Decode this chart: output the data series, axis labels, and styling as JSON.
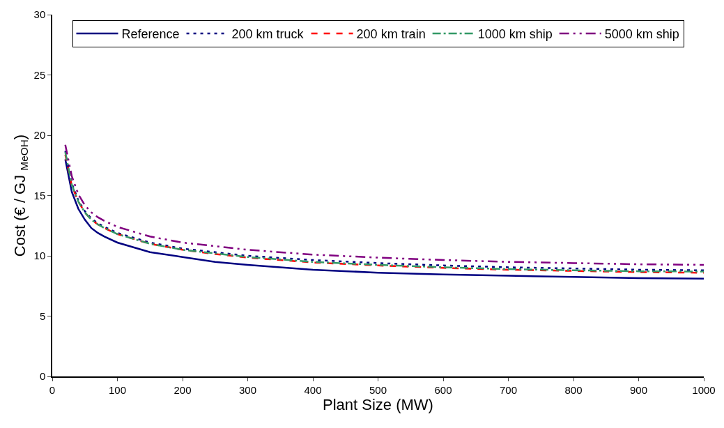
{
  "chart_data": {
    "type": "line",
    "xlabel": "Plant Size (MW)",
    "ylabel": "Cost (€ / GJ $_{MeOH}$)",
    "x": [
      20,
      30,
      40,
      50,
      60,
      70,
      80,
      100,
      150,
      200,
      250,
      300,
      400,
      500,
      600,
      700,
      800,
      900,
      1000
    ],
    "xlim": [
      0,
      1000
    ],
    "xticks": [
      0,
      100,
      200,
      300,
      400,
      500,
      600,
      700,
      800,
      900,
      1000
    ],
    "ylim": [
      0,
      30
    ],
    "yticks": [
      0,
      5,
      10,
      15,
      20,
      25,
      30
    ],
    "legend": "top",
    "marker": "none",
    "series": [
      {
        "name": "Reference",
        "color": "#000080",
        "line_style": "solid",
        "values": [
          18.0,
          15.3,
          13.9,
          13.0,
          12.3,
          11.9,
          11.6,
          11.1,
          10.3,
          9.9,
          9.5,
          9.25,
          8.85,
          8.6,
          8.45,
          8.35,
          8.25,
          8.15,
          8.1
        ]
      },
      {
        "name": "200 km truck",
        "color": "#000080",
        "line_style": "dotted",
        "values": [
          18.7,
          16.0,
          14.6,
          13.7,
          13.1,
          12.7,
          12.4,
          11.9,
          11.1,
          10.6,
          10.3,
          10.0,
          9.65,
          9.4,
          9.2,
          9.05,
          8.95,
          8.85,
          8.8
        ]
      },
      {
        "name": "200 km train",
        "color": "#ff0000",
        "line_style": "dashed",
        "values": [
          18.4,
          15.8,
          14.5,
          13.6,
          13.0,
          12.6,
          12.3,
          11.8,
          11.0,
          10.5,
          10.15,
          9.85,
          9.45,
          9.2,
          9.0,
          8.85,
          8.75,
          8.65,
          8.6
        ]
      },
      {
        "name": "1000 km ship",
        "color": "#339966",
        "line_style": "dashed",
        "values": [
          18.6,
          15.9,
          14.5,
          13.6,
          13.0,
          12.6,
          12.3,
          11.8,
          11.0,
          10.5,
          10.2,
          9.9,
          9.5,
          9.25,
          9.05,
          8.9,
          8.8,
          8.72,
          8.7
        ]
      },
      {
        "name": "5000 km ship",
        "color": "#800080",
        "line_style": "dashed",
        "values": [
          19.2,
          16.6,
          15.1,
          14.2,
          13.6,
          13.2,
          12.9,
          12.4,
          11.6,
          11.1,
          10.8,
          10.5,
          10.1,
          9.85,
          9.65,
          9.5,
          9.4,
          9.3,
          9.25
        ]
      }
    ]
  }
}
